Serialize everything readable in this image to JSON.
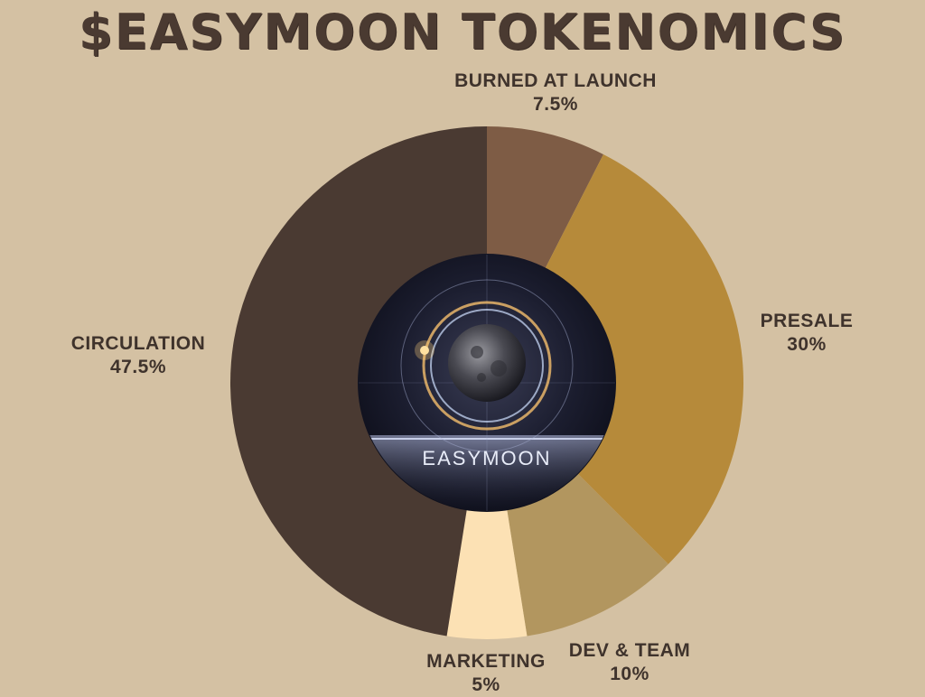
{
  "chart_data": {
    "type": "pie",
    "title": "$EASYMOON TOKENOMICS",
    "center_text": "EASYMOON",
    "slices": [
      {
        "name": "BURNED AT LAUNCH",
        "value": 7.5,
        "label": "7.5%",
        "color": "#7e5c45"
      },
      {
        "name": "PRESALE",
        "value": 30,
        "label": "30%",
        "color": "#b68a3a"
      },
      {
        "name": "DEV & TEAM",
        "value": 10,
        "label": "10%",
        "color": "#b2965f"
      },
      {
        "name": "MARKETING",
        "value": 5,
        "label": "5%",
        "color": "#fce1b4"
      },
      {
        "name": "CIRCULATION",
        "value": 47.5,
        "label": "47.5%",
        "color": "#4a3a32"
      }
    ]
  }
}
